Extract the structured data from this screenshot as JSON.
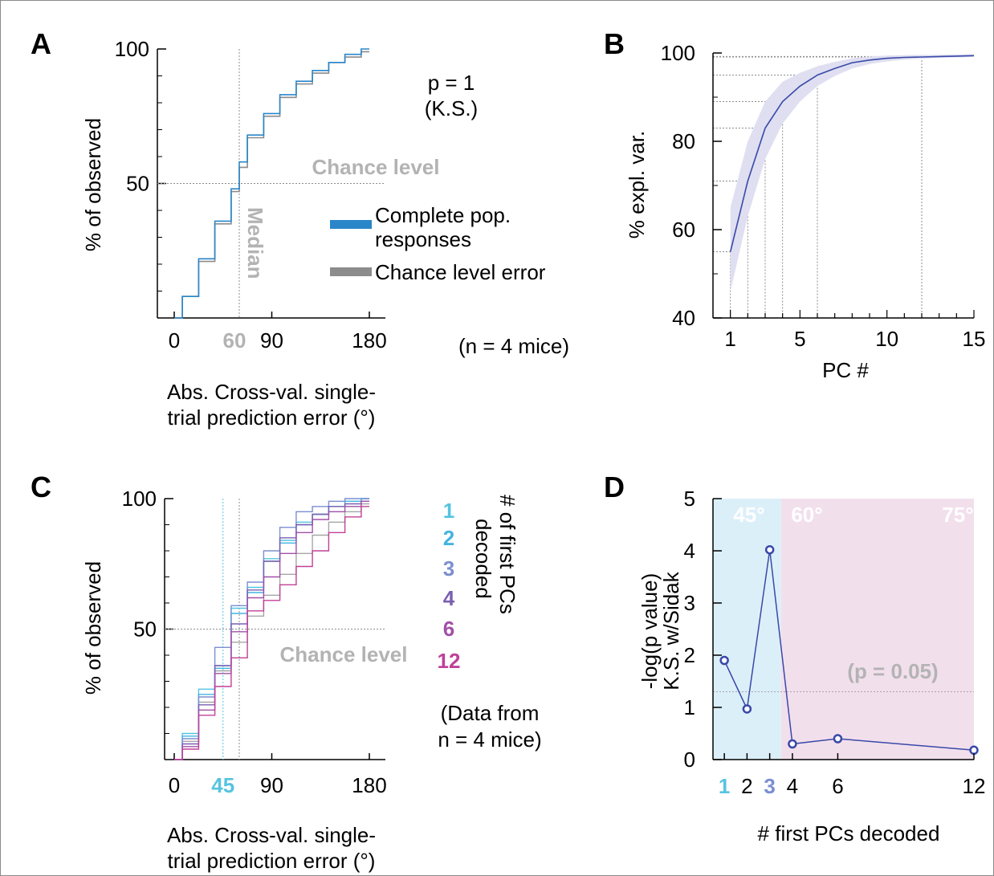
{
  "chart_data": [
    {
      "panel": "A",
      "type": "line",
      "ylabel": "% of observed",
      "xlabel": [
        "Abs. Cross-val. single-",
        "trial prediction error (°)"
      ],
      "xlim": [
        0,
        180
      ],
      "ylim": [
        0,
        100
      ],
      "xticks": [
        0,
        90,
        180
      ],
      "yticks": [
        50,
        100
      ],
      "median_value": 60,
      "median_label": "Median",
      "chance_y": 50,
      "chance_label": "Chance level",
      "stats": [
        "p = 1",
        "(K.S.)"
      ],
      "n_note": "(n = 4 mice)",
      "legend": [
        "Complete pop.",
        "responses",
        "Chance level error"
      ],
      "series": [
        {
          "name": "Complete pop. responses",
          "color": "#2a86c8",
          "x": [
            0,
            7.5,
            7.5,
            22.5,
            22.5,
            37.5,
            37.5,
            52.5,
            52.5,
            60,
            60,
            67.5,
            67.5,
            82.5,
            82.5,
            97.5,
            97.5,
            112.5,
            112.5,
            127.5,
            127.5,
            142.5,
            142.5,
            157.5,
            157.5,
            172.5,
            172.5,
            180
          ],
          "y": [
            0,
            0,
            8,
            8,
            22,
            22,
            36,
            36,
            48,
            48,
            58,
            58,
            68,
            68,
            76,
            76,
            83,
            83,
            88,
            88,
            92,
            92,
            95,
            95,
            98,
            98,
            100,
            100
          ]
        },
        {
          "name": "Chance level error",
          "color": "#8c8c8c",
          "x": [
            0,
            7.5,
            7.5,
            22.5,
            22.5,
            37.5,
            37.5,
            52.5,
            52.5,
            60,
            60,
            67.5,
            67.5,
            82.5,
            82.5,
            97.5,
            97.5,
            112.5,
            112.5,
            127.5,
            127.5,
            142.5,
            142.5,
            157.5,
            157.5,
            172.5,
            172.5,
            180
          ],
          "y": [
            0,
            0,
            8,
            8,
            21,
            21,
            35,
            35,
            47,
            47,
            56,
            56,
            67,
            67,
            75,
            75,
            82,
            82,
            87,
            87,
            91,
            91,
            95,
            95,
            97,
            97,
            99,
            99
          ]
        }
      ]
    },
    {
      "panel": "B",
      "type": "line",
      "xlabel": "PC #",
      "ylabel": "% expl. var.",
      "xlim": [
        0,
        15
      ],
      "ylim": [
        40,
        100
      ],
      "xticks": [
        1,
        5,
        10,
        15
      ],
      "yticks": [
        40,
        60,
        80,
        100
      ],
      "x": [
        1,
        2,
        3,
        4,
        5,
        6,
        7,
        8,
        9,
        10,
        11,
        12,
        13,
        14,
        15
      ],
      "mean": [
        55,
        71,
        83,
        89,
        92.5,
        95,
        96.5,
        97.8,
        98.4,
        98.8,
        99,
        99.1,
        99.2,
        99.3,
        99.4
      ],
      "lower": [
        46,
        63,
        76,
        84,
        89,
        92.5,
        94.8,
        96.5,
        97.5,
        98.1,
        98.5,
        98.7,
        98.9,
        99,
        99.1
      ],
      "upper": [
        65,
        80,
        89,
        93.5,
        95.5,
        97,
        98,
        98.8,
        99.2,
        99.4,
        99.5,
        99.6,
        99.6,
        99.7,
        99.7
      ],
      "guide_pcs": [
        1,
        2,
        3,
        4,
        6,
        12
      ],
      "colors": {
        "line": "#3949a8",
        "band": "#dfdff1",
        "guide": "#8c8c8c"
      }
    },
    {
      "panel": "C",
      "type": "line",
      "ylabel": "% of observed",
      "xlabel": [
        "Abs. Cross-val. single-",
        "trial prediction error (°)"
      ],
      "xlim": [
        0,
        180
      ],
      "ylim": [
        0,
        100
      ],
      "xticks": [
        0,
        90,
        180
      ],
      "yticks": [
        50,
        100
      ],
      "marker_value": 45,
      "chance_x": 60,
      "chance_y": 50,
      "chance_label": "Chance level",
      "legend_title": [
        "# of first PCs",
        "decoded"
      ],
      "note": [
        "(Data from",
        "n = 4 mice)"
      ],
      "x": [
        0,
        7.5,
        22.5,
        37.5,
        52.5,
        67.5,
        82.5,
        97.5,
        112.5,
        127.5,
        142.5,
        157.5,
        172.5,
        180
      ],
      "chance_series": {
        "color": "#a6a6a6",
        "y": [
          0,
          7,
          22,
          34,
          45,
          55,
          63,
          71,
          79,
          86,
          91,
          95,
          98,
          98
        ]
      },
      "series": [
        {
          "name": "1",
          "color": "#55c4e0",
          "y": [
            0,
            10,
            27,
            36,
            58,
            66,
            77,
            84,
            91,
            94,
            97,
            99,
            100,
            100
          ]
        },
        {
          "name": "2",
          "color": "#45b3e0",
          "y": [
            0,
            9,
            25,
            35,
            56,
            64,
            76,
            83,
            90,
            94,
            97,
            99,
            100,
            100
          ]
        },
        {
          "name": "3",
          "color": "#7b8fd0",
          "y": [
            0,
            8,
            24,
            43,
            59,
            68,
            80,
            89,
            95,
            97,
            99,
            100,
            100,
            100
          ]
        },
        {
          "name": "4",
          "color": "#7a5fb0",
          "y": [
            0,
            6,
            21,
            36,
            52,
            65,
            76,
            85,
            90,
            94,
            97,
            98,
            99,
            99
          ]
        },
        {
          "name": "6",
          "color": "#a050a8",
          "y": [
            0,
            5,
            19,
            33,
            49,
            62,
            70,
            79,
            87,
            92,
            95,
            97,
            99,
            99
          ]
        },
        {
          "name": "12",
          "color": "#c04098",
          "y": [
            0,
            4,
            17,
            28,
            39,
            57,
            61,
            67,
            74,
            80,
            87,
            93,
            97,
            97
          ]
        }
      ]
    },
    {
      "panel": "D",
      "type": "scatter",
      "xlabel": "# first PCs decoded",
      "ylabel": [
        "-log(p value)",
        "K.S. w/Sidak"
      ],
      "xlim": [
        0.5,
        12
      ],
      "ylim": [
        0,
        5
      ],
      "xticks": [
        1,
        2,
        3,
        4,
        6,
        12
      ],
      "yticks": [
        0,
        1,
        2,
        3,
        4,
        5
      ],
      "x": [
        1,
        2,
        3,
        4,
        6,
        12
      ],
      "y": [
        1.9,
        0.97,
        4.02,
        0.3,
        0.4,
        0.18
      ],
      "threshold": 1.3,
      "threshold_label": "(p = 0.05)",
      "regions": [
        {
          "label": "45°",
          "from": 0.5,
          "to": 3.5,
          "color": "#dbeff9"
        },
        {
          "label": "60°",
          "from": 3.5,
          "to": 12,
          "color": "#f2dfec"
        },
        {
          "label": "75°"
        }
      ],
      "tick_colors": {
        "1": "#55c4e0",
        "3": "#7b8fd0"
      },
      "colors": {
        "line": "#3949a8",
        "marker": "#3949a8",
        "threshold": "#a6a6a6"
      }
    }
  ],
  "panel_labels": [
    "A",
    "B",
    "C",
    "D"
  ]
}
